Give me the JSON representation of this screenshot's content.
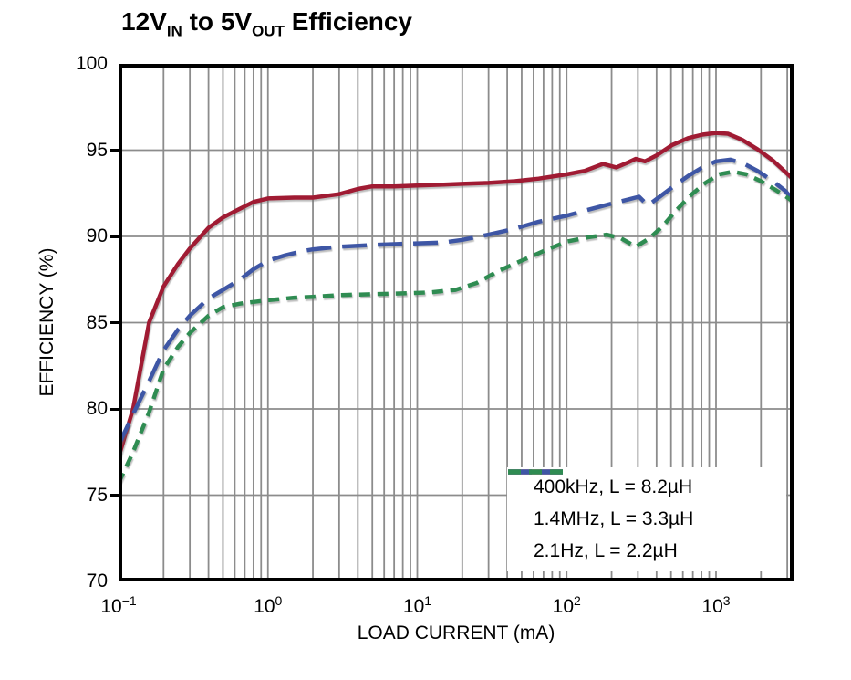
{
  "title": {
    "seg1": "12V",
    "sub1": "IN",
    "seg2": " to 5V",
    "sub2": "OUT",
    "seg3": " Efficiency"
  },
  "colors": {
    "background": "#ffffff",
    "axis": "#000000",
    "grid": "#8c8c8c",
    "series_red": "#a01b33",
    "series_blue": "#3e56a5",
    "series_green": "#2f8c52"
  },
  "chart_data": {
    "type": "line",
    "title": "12VIN to 5VOUT Efficiency",
    "xlabel": "LOAD CURRENT (mA)",
    "ylabel": "EFFICIENCY (%)",
    "x_scale": "log",
    "x_range_mA": [
      0.1,
      3300
    ],
    "ylim": [
      70,
      100
    ],
    "grid": "on",
    "legend_position": "bottom-right",
    "y_ticks": [
      100,
      95,
      90,
      85,
      80,
      75,
      70
    ],
    "y_gridlines": [
      95,
      90,
      85,
      80,
      75
    ],
    "x_ticks": [
      {
        "base": "10",
        "exp": "−1",
        "value": 0.1
      },
      {
        "base": "10",
        "exp": "0",
        "value": 1
      },
      {
        "base": "10",
        "exp": "1",
        "value": 10
      },
      {
        "base": "10",
        "exp": "2",
        "value": 100
      },
      {
        "base": "10",
        "exp": "3",
        "value": 1000
      }
    ],
    "series": [
      {
        "name": "400kHz, L = 8.2µH",
        "color": "#a01b33",
        "dash": "solid",
        "points": [
          [
            0.1,
            77.2
          ],
          [
            0.125,
            80.0
          ],
          [
            0.16,
            85.0
          ],
          [
            0.2,
            87.1
          ],
          [
            0.25,
            88.4
          ],
          [
            0.3,
            89.3
          ],
          [
            0.4,
            90.5
          ],
          [
            0.5,
            91.1
          ],
          [
            0.63,
            91.55
          ],
          [
            0.8,
            92.0
          ],
          [
            1,
            92.2
          ],
          [
            1.5,
            92.25
          ],
          [
            2,
            92.25
          ],
          [
            3,
            92.45
          ],
          [
            4,
            92.75
          ],
          [
            5,
            92.9
          ],
          [
            7,
            92.9
          ],
          [
            10,
            92.95
          ],
          [
            15,
            93.0
          ],
          [
            20,
            93.05
          ],
          [
            30,
            93.1
          ],
          [
            45,
            93.2
          ],
          [
            65,
            93.35
          ],
          [
            100,
            93.6
          ],
          [
            132,
            93.8
          ],
          [
            175,
            94.2
          ],
          [
            215,
            94.0
          ],
          [
            260,
            94.3
          ],
          [
            290,
            94.5
          ],
          [
            335,
            94.35
          ],
          [
            400,
            94.7
          ],
          [
            510,
            95.3
          ],
          [
            650,
            95.7
          ],
          [
            810,
            95.9
          ],
          [
            1000,
            96.0
          ],
          [
            1200,
            95.95
          ],
          [
            1500,
            95.6
          ],
          [
            1900,
            95.05
          ],
          [
            2400,
            94.4
          ],
          [
            2900,
            93.75
          ],
          [
            3300,
            93.3
          ]
        ]
      },
      {
        "name": "1.4MHz, L = 3.3µH",
        "color": "#3e56a5",
        "dash": "long-dash",
        "points": [
          [
            0.1,
            77.9
          ],
          [
            0.125,
            79.7
          ],
          [
            0.16,
            81.6
          ],
          [
            0.2,
            83.4
          ],
          [
            0.25,
            84.6
          ],
          [
            0.3,
            85.4
          ],
          [
            0.4,
            86.4
          ],
          [
            0.5,
            86.9
          ],
          [
            0.65,
            87.5
          ],
          [
            0.8,
            88.1
          ],
          [
            1,
            88.6
          ],
          [
            1.3,
            88.9
          ],
          [
            1.7,
            89.15
          ],
          [
            2,
            89.25
          ],
          [
            3,
            89.4
          ],
          [
            5,
            89.5
          ],
          [
            7,
            89.55
          ],
          [
            10,
            89.6
          ],
          [
            15,
            89.65
          ],
          [
            20,
            89.8
          ],
          [
            30,
            90.1
          ],
          [
            45,
            90.45
          ],
          [
            65,
            90.85
          ],
          [
            100,
            91.2
          ],
          [
            140,
            91.55
          ],
          [
            200,
            91.9
          ],
          [
            260,
            92.15
          ],
          [
            305,
            92.3
          ],
          [
            350,
            91.8
          ],
          [
            420,
            92.3
          ],
          [
            510,
            92.85
          ],
          [
            650,
            93.5
          ],
          [
            810,
            94.0
          ],
          [
            1000,
            94.35
          ],
          [
            1250,
            94.45
          ],
          [
            1550,
            94.2
          ],
          [
            1900,
            93.8
          ],
          [
            2400,
            93.2
          ],
          [
            2900,
            92.65
          ],
          [
            3300,
            92.1
          ]
        ]
      },
      {
        "name": "2.1Hz, L = 2.2µH",
        "color": "#2f8c52",
        "dash": "short-dash",
        "points": [
          [
            0.1,
            75.7
          ],
          [
            0.125,
            77.5
          ],
          [
            0.16,
            79.8
          ],
          [
            0.2,
            82.3
          ],
          [
            0.25,
            83.6
          ],
          [
            0.3,
            84.4
          ],
          [
            0.4,
            85.4
          ],
          [
            0.5,
            85.9
          ],
          [
            0.65,
            86.1
          ],
          [
            0.8,
            86.2
          ],
          [
            1,
            86.3
          ],
          [
            1.5,
            86.45
          ],
          [
            2,
            86.5
          ],
          [
            3,
            86.6
          ],
          [
            5,
            86.65
          ],
          [
            8,
            86.7
          ],
          [
            12,
            86.75
          ],
          [
            18,
            86.9
          ],
          [
            25,
            87.3
          ],
          [
            35,
            88.0
          ],
          [
            50,
            88.6
          ],
          [
            70,
            89.15
          ],
          [
            100,
            89.7
          ],
          [
            140,
            89.95
          ],
          [
            185,
            90.1
          ],
          [
            230,
            89.9
          ],
          [
            290,
            89.4
          ],
          [
            360,
            89.9
          ],
          [
            440,
            90.6
          ],
          [
            540,
            91.5
          ],
          [
            680,
            92.4
          ],
          [
            850,
            93.1
          ],
          [
            1050,
            93.6
          ],
          [
            1300,
            93.75
          ],
          [
            1600,
            93.6
          ],
          [
            2000,
            93.2
          ],
          [
            2500,
            92.7
          ],
          [
            2900,
            92.35
          ],
          [
            3300,
            92.0
          ]
        ]
      }
    ]
  }
}
